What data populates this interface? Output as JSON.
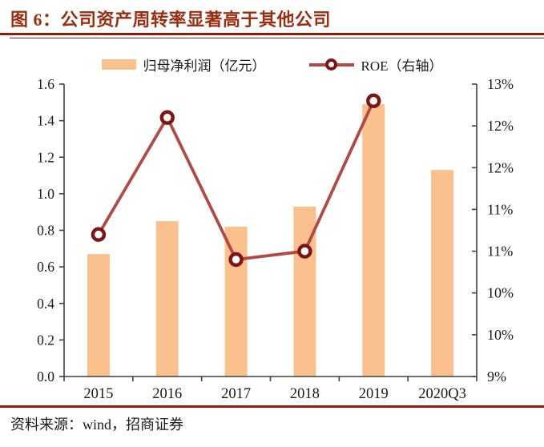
{
  "header": {
    "title": "图 6：公司资产周转率显著高于其他公司"
  },
  "legend": {
    "bar_label": "归母净利润（亿元）",
    "line_label": "ROE（右轴）"
  },
  "chart_data": {
    "type": "bar",
    "subtype": "combo-bar-line",
    "categories": [
      "2015",
      "2016",
      "2017",
      "2018",
      "2019",
      "2020Q3"
    ],
    "series": [
      {
        "name": "归母净利润（亿元）",
        "type": "bar",
        "axis": "left",
        "values": [
          0.67,
          0.85,
          0.82,
          0.93,
          1.49,
          1.13
        ]
      },
      {
        "name": "ROE（右轴）",
        "type": "line",
        "axis": "right",
        "values": [
          10.7,
          12.1,
          10.4,
          10.5,
          12.3,
          null
        ]
      }
    ],
    "left_axis": {
      "min": 0,
      "max": 1.6,
      "step": 0.2,
      "tick_labels": [
        "0.0",
        "0.2",
        "0.4",
        "0.6",
        "0.8",
        "1.0",
        "1.2",
        "1.4",
        "1.6"
      ]
    },
    "right_axis": {
      "min": 9,
      "max": 12.5,
      "step": 0.5,
      "tick_labels": [
        "9%",
        "10%",
        "10%",
        "11%",
        "11%",
        "12%",
        "12%",
        "13%"
      ]
    },
    "grid": false,
    "legend_position": "top-center"
  },
  "footer": {
    "source": "资料来源：wind，招商证券"
  },
  "colors": {
    "title": "#9a2e10",
    "accent_rule": "#8c1e0e",
    "bar": "#fac08d",
    "line": "#b04a44",
    "marker_ring": "#7d1516",
    "marker_fill": "#ffffff",
    "axis": "#404040",
    "text": "#1a1a1a"
  }
}
